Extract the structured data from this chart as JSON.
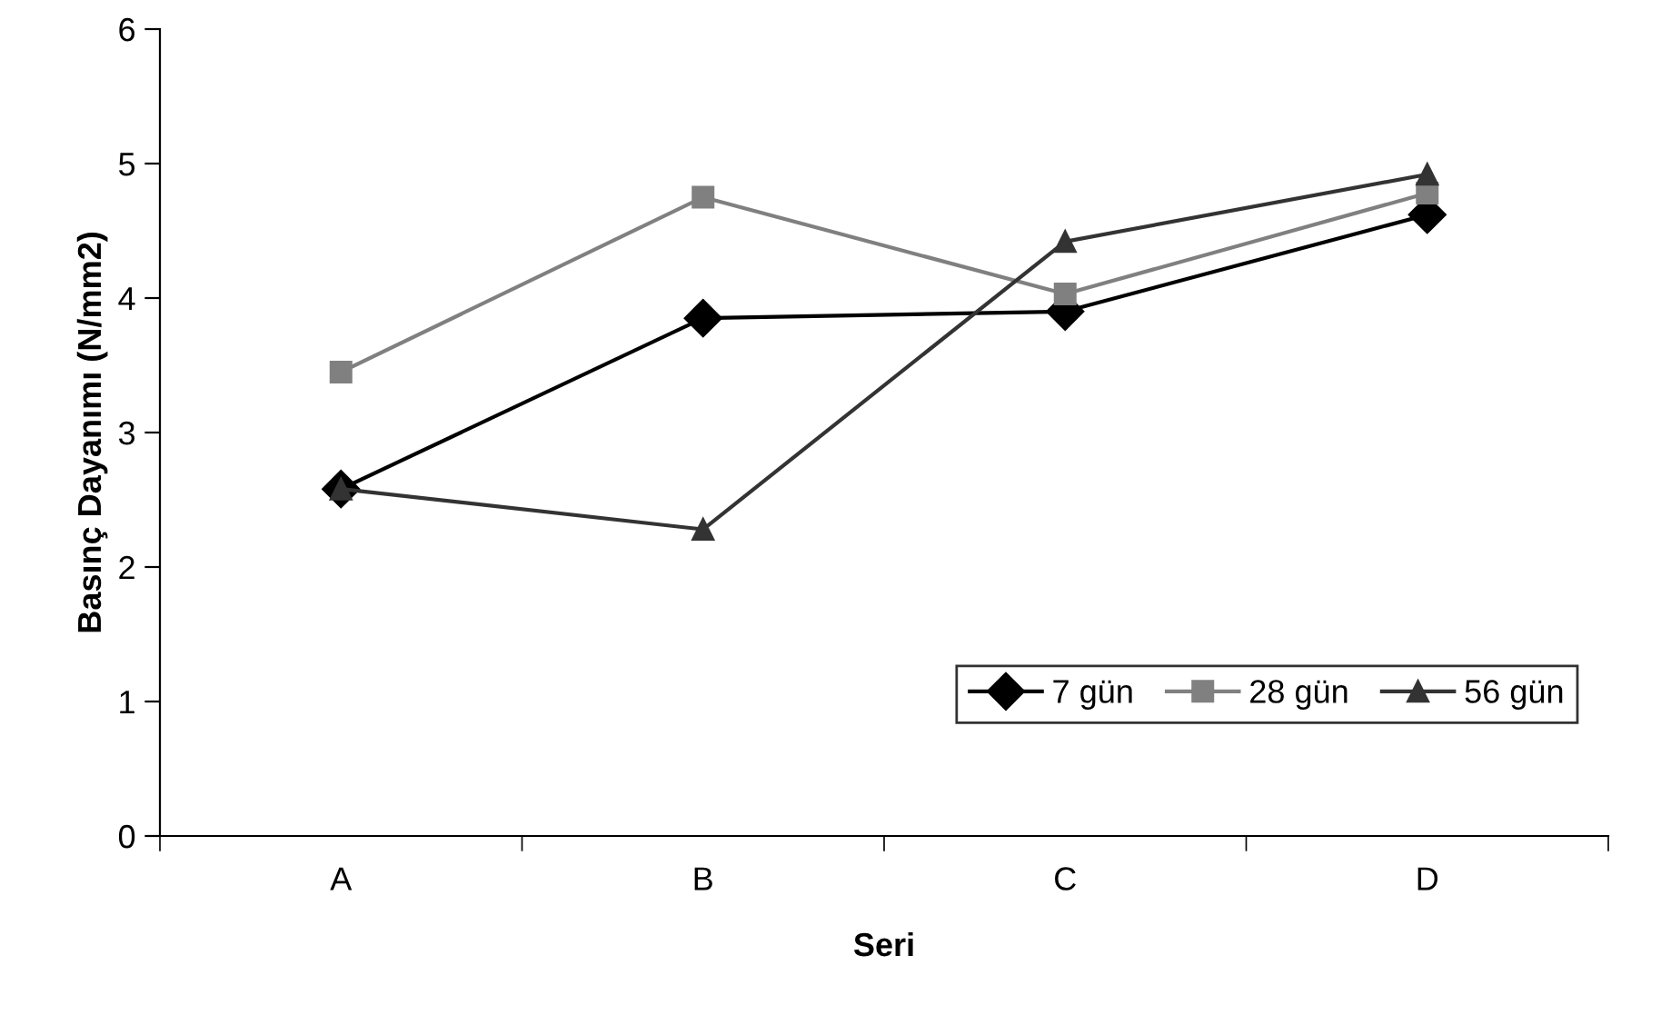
{
  "chart_data": {
    "type": "line",
    "xlabel": "Seri",
    "ylabel": "Basınç Dayanımı (N/mm2)",
    "categories": [
      "A",
      "B",
      "C",
      "D"
    ],
    "series": [
      {
        "name": "7 gün",
        "color": "#000000",
        "marker": "diamond",
        "values": [
          2.58,
          3.85,
          3.9,
          4.62
        ]
      },
      {
        "name": "28 gün",
        "color": "#808080",
        "marker": "square",
        "values": [
          3.45,
          4.75,
          4.03,
          4.78
        ]
      },
      {
        "name": "56 gün",
        "color": "#333333",
        "marker": "triangle",
        "values": [
          2.58,
          2.28,
          4.42,
          4.92
        ]
      }
    ],
    "ylim": [
      0,
      6
    ],
    "yticks": [
      0,
      1,
      2,
      3,
      4,
      5,
      6
    ],
    "grid": false,
    "legend": "bottom right",
    "line_style": "solid"
  }
}
